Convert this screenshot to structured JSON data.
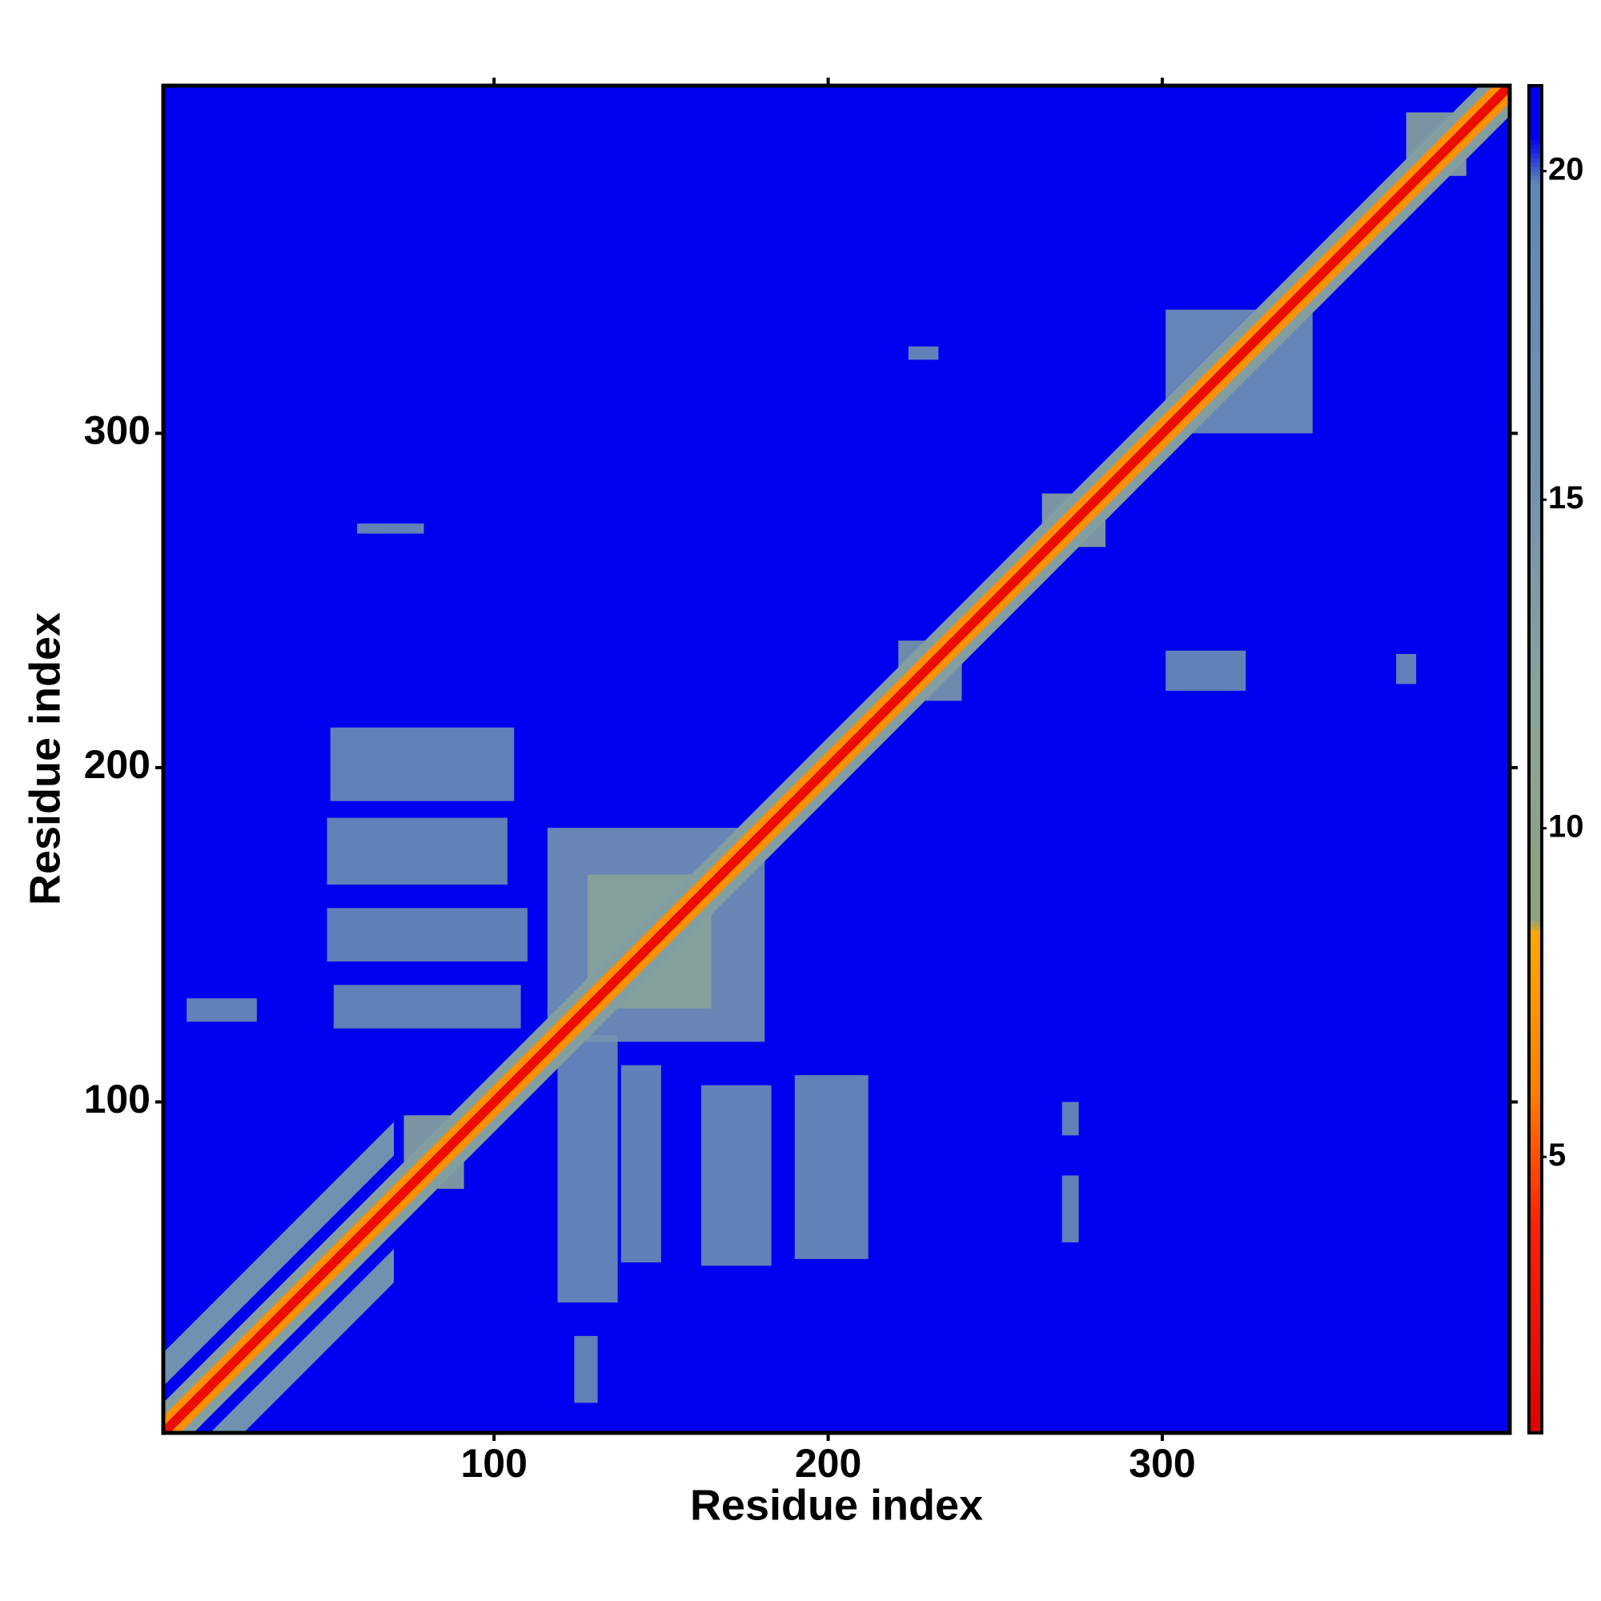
{
  "chart_data": {
    "type": "heatmap",
    "xlabel": "Residue index",
    "ylabel": "Residue index",
    "xlim": [
      1,
      404
    ],
    "ylim": [
      1,
      404
    ],
    "xticks": [
      100,
      200,
      300
    ],
    "yticks": [
      100,
      200,
      300
    ],
    "clim": [
      0.8,
      21.3
    ],
    "cticks": [
      5,
      10,
      15,
      20
    ],
    "colorscale": [
      [
        0.8,
        "#e00000"
      ],
      [
        4,
        "#ff2200"
      ],
      [
        6,
        "#ff8000"
      ],
      [
        8.4,
        "#ffa600"
      ],
      [
        8.6,
        "#8ea27a"
      ],
      [
        12,
        "#8aa39a"
      ],
      [
        15,
        "#7494ae"
      ],
      [
        19.8,
        "#5f88b6"
      ],
      [
        20.5,
        "#0000f0"
      ],
      [
        21.3,
        "#0000f0"
      ]
    ],
    "background_value": 21,
    "regions": [
      {
        "x": [
          51,
          106
        ],
        "y": [
          190,
          212
        ],
        "value": 17
      },
      {
        "x": [
          50,
          104
        ],
        "y": [
          165,
          185
        ],
        "value": 17
      },
      {
        "x": [
          50,
          110
        ],
        "y": [
          142,
          158
        ],
        "value": 17.5
      },
      {
        "x": [
          52,
          108
        ],
        "y": [
          122,
          135
        ],
        "value": 17
      },
      {
        "x": [
          8,
          29
        ],
        "y": [
          124,
          131
        ],
        "value": 17
      },
      {
        "x": [
          119,
          137
        ],
        "y": [
          40,
          120
        ],
        "value": 17
      },
      {
        "x": [
          138,
          150
        ],
        "y": [
          52,
          111
        ],
        "value": 17.5
      },
      {
        "x": [
          162,
          183
        ],
        "y": [
          51,
          105
        ],
        "value": 17
      },
      {
        "x": [
          190,
          212
        ],
        "y": [
          53,
          108
        ],
        "value": 17
      },
      {
        "x": [
          124,
          131
        ],
        "y": [
          10,
          30
        ],
        "value": 17
      },
      {
        "x": [
          116,
          181
        ],
        "y": [
          118,
          182
        ],
        "value": 15
      },
      {
        "x": [
          128,
          165
        ],
        "y": [
          128,
          168
        ],
        "value": 12
      },
      {
        "x": [
          73,
          91
        ],
        "y": [
          74,
          96
        ],
        "value": 12
      },
      {
        "x": [
          221,
          240
        ],
        "y": [
          220,
          238
        ],
        "value": 14
      },
      {
        "x": [
          264,
          283
        ],
        "y": [
          266,
          282
        ],
        "value": 12
      },
      {
        "x": [
          301,
          345
        ],
        "y": [
          300,
          337
        ],
        "value": 16
      },
      {
        "x": [
          373,
          391
        ],
        "y": [
          377,
          396
        ],
        "value": 12
      },
      {
        "x": [
          370,
          376
        ],
        "y": [
          225,
          234
        ],
        "value": 17
      },
      {
        "x": [
          301,
          325
        ],
        "y": [
          223,
          235
        ],
        "value": 17
      },
      {
        "x": [
          270,
          275
        ],
        "y": [
          90,
          100
        ],
        "value": 17
      },
      {
        "x": [
          270,
          275
        ],
        "y": [
          58,
          78
        ],
        "value": 17
      },
      {
        "x": [
          224,
          233
        ],
        "y": [
          322,
          326
        ],
        "value": 17
      },
      {
        "x": [
          59,
          79
        ],
        "y": [
          270,
          273
        ],
        "value": 17
      }
    ],
    "diagonal_bands": [
      {
        "range": [
          1,
          70
        ],
        "offset": [
          14,
          24
        ],
        "value": 16
      },
      {
        "range": [
          1,
          70
        ],
        "offset": [
          -24,
          -14
        ],
        "value": 16
      },
      {
        "range": [
          1,
          404
        ],
        "offset": [
          -9,
          9
        ],
        "value": 13
      },
      {
        "range": [
          1,
          404
        ],
        "offset": [
          -5,
          5
        ],
        "value": 7
      },
      {
        "range": [
          1,
          404
        ],
        "offset": [
          -2,
          2
        ],
        "value": 2
      }
    ]
  }
}
